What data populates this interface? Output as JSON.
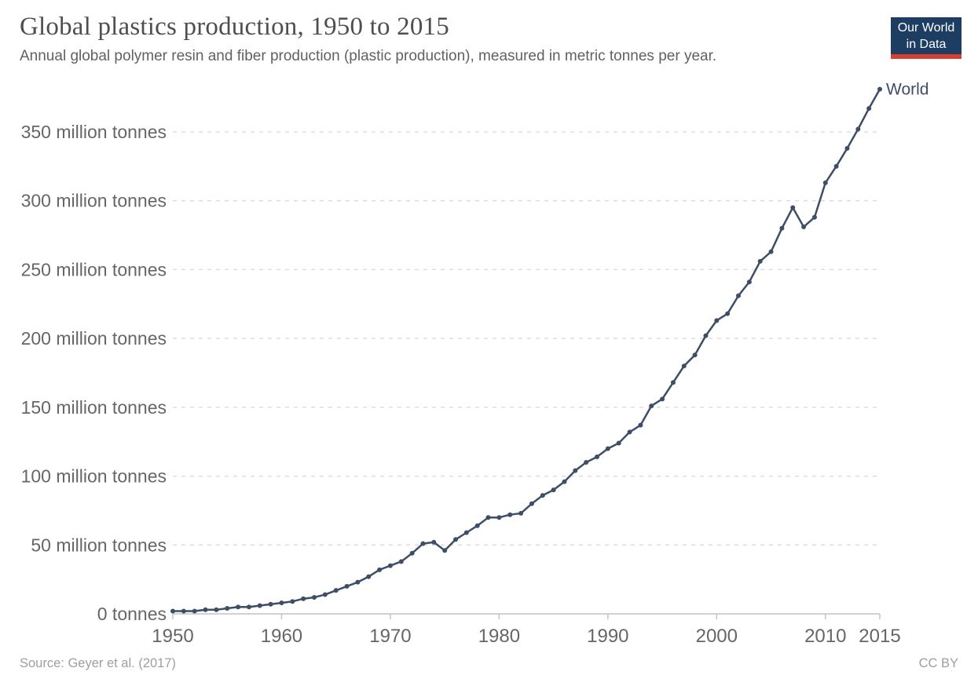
{
  "header": {
    "title": "Global plastics production, 1950 to 2015",
    "subtitle": "Annual global polymer resin and fiber production (plastic production), measured in metric tonnes per year."
  },
  "logo": {
    "line1": "Our World",
    "line2": "in Data",
    "bg_color": "#1d3d63",
    "accent_color": "#d63e32"
  },
  "chart_data": {
    "type": "line",
    "title": "Global plastics production, 1950 to 2015",
    "xlabel": "",
    "ylabel": "",
    "unit": "million tonnes",
    "grid": "horizontal-dashed",
    "legend_position": "end-of-line-label",
    "xlim": [
      1950,
      2015
    ],
    "ylim": [
      0,
      381
    ],
    "x": [
      1950,
      1951,
      1952,
      1953,
      1954,
      1955,
      1956,
      1957,
      1958,
      1959,
      1960,
      1961,
      1962,
      1963,
      1964,
      1965,
      1966,
      1967,
      1968,
      1969,
      1970,
      1971,
      1972,
      1973,
      1974,
      1975,
      1976,
      1977,
      1978,
      1979,
      1980,
      1981,
      1982,
      1983,
      1984,
      1985,
      1986,
      1987,
      1988,
      1989,
      1990,
      1991,
      1992,
      1993,
      1994,
      1995,
      1996,
      1997,
      1998,
      1999,
      2000,
      2001,
      2002,
      2003,
      2004,
      2005,
      2006,
      2007,
      2008,
      2009,
      2010,
      2011,
      2012,
      2013,
      2014,
      2015
    ],
    "series": [
      {
        "name": "World",
        "values": [
          2,
          2,
          2,
          3,
          3,
          4,
          5,
          5,
          6,
          7,
          8,
          9,
          11,
          12,
          14,
          17,
          20,
          23,
          27,
          32,
          35,
          38,
          44,
          51,
          52,
          46,
          54,
          59,
          64,
          70,
          70,
          72,
          73,
          80,
          86,
          90,
          96,
          104,
          110,
          114,
          120,
          124,
          132,
          137,
          151,
          156,
          168,
          180,
          188,
          202,
          213,
          218,
          231,
          241,
          256,
          263,
          280,
          295,
          281,
          288,
          313,
          325,
          338,
          352,
          367,
          381
        ]
      }
    ],
    "xticks": [
      1950,
      1960,
      1970,
      1980,
      1990,
      2000,
      2010,
      2015
    ],
    "yticks": [
      {
        "value": 0,
        "label": "0 tonnes"
      },
      {
        "value": 50,
        "label": "50 million tonnes"
      },
      {
        "value": 100,
        "label": "100 million tonnes"
      },
      {
        "value": 150,
        "label": "150 million tonnes"
      },
      {
        "value": 200,
        "label": "200 million tonnes"
      },
      {
        "value": 250,
        "label": "250 million tonnes"
      },
      {
        "value": 300,
        "label": "300 million tonnes"
      },
      {
        "value": 350,
        "label": "350 million tonnes"
      }
    ],
    "end_label": "World"
  },
  "footer": {
    "source": "Source: Geyer et al. (2017)",
    "license": "CC BY"
  },
  "colors": {
    "line": "#3d4e66",
    "end_label": "#3d4e66",
    "grid": "#dddddd",
    "axis": "#c4c4c4",
    "tick_text": "#666666",
    "title": "#4e4e4e",
    "subtitle": "#616161",
    "footer": "#9e9e9e"
  }
}
